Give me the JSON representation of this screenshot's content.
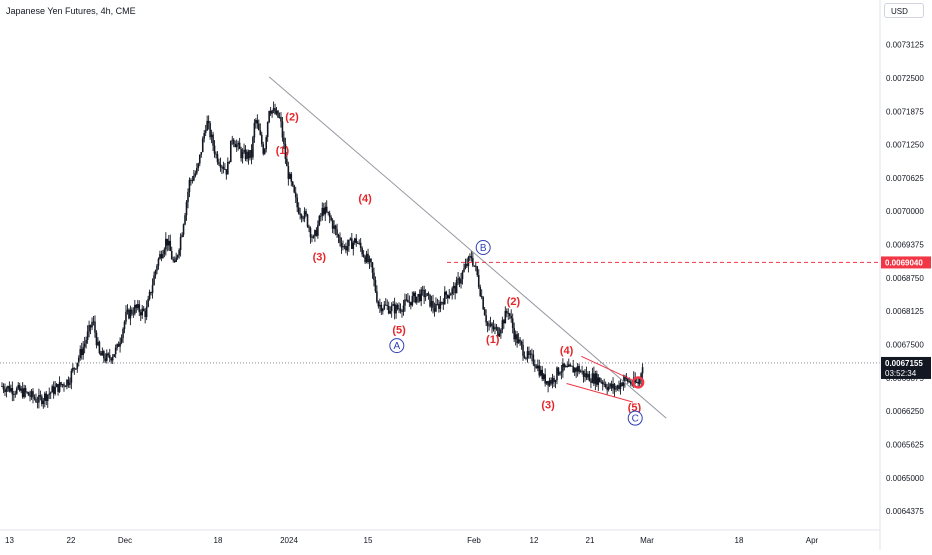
{
  "header": {
    "title": "Japanese Yen Futures, 4h, CME",
    "currency": "USD"
  },
  "colors": {
    "candle": "#131722",
    "wave_label": "#e5262a",
    "abc_label": "#2f3fb5",
    "trendline": "#9598a1",
    "resistance": "#f23645",
    "wedge": "#f23645",
    "last_price_bg": "#131722",
    "resistance_bg": "#f23645"
  },
  "chart_data": {
    "type": "candlestick",
    "y_axis": {
      "ticks": [
        "0.0073125",
        "0.0072500",
        "0.0071875",
        "0.0071250",
        "0.0070625",
        "0.0070000",
        "0.0069375",
        "0.0068750",
        "0.0068125",
        "0.0067500",
        "0.0066875",
        "0.0066250",
        "0.0065625",
        "0.0065000",
        "0.0064375"
      ],
      "range": [
        0.006415,
        0.007375
      ]
    },
    "x_axis": {
      "ticks": [
        "13",
        "22",
        "Dec",
        "18",
        "2024",
        "15",
        "Feb",
        "12",
        "21",
        "Mar",
        "18",
        "Apr"
      ]
    },
    "price_path": [
      [
        0,
        0.006672
      ],
      [
        3,
        0.00666
      ],
      [
        5,
        0.006645
      ],
      [
        7,
        0.006665
      ],
      [
        9,
        0.006683
      ],
      [
        11,
        0.006745
      ],
      [
        12.3,
        0.006795
      ],
      [
        13.2,
        0.00673
      ],
      [
        14.4,
        0.006723
      ],
      [
        15.6,
        0.006742
      ],
      [
        16.8,
        0.006803
      ],
      [
        18,
        0.006818
      ],
      [
        19.5,
        0.006809
      ],
      [
        21,
        0.006902
      ],
      [
        22.3,
        0.006948
      ],
      [
        23.4,
        0.006895
      ],
      [
        24.4,
        0.006965
      ],
      [
        25.4,
        0.007055
      ],
      [
        26.5,
        0.007077
      ],
      [
        27.7,
        0.00717
      ],
      [
        29,
        0.007105
      ],
      [
        30.5,
        0.007075
      ],
      [
        31.2,
        0.00714
      ],
      [
        32.5,
        0.007105
      ],
      [
        33.8,
        0.007105
      ],
      [
        34.3,
        0.007175
      ],
      [
        35.5,
        0.00711
      ],
      [
        36.2,
        0.007195
      ],
      [
        37.7,
        0.007172
      ],
      [
        38.6,
        0.00708
      ],
      [
        40,
        0.007008
      ],
      [
        41.2,
        0.006988
      ],
      [
        42.2,
        0.006945
      ],
      [
        43.5,
        0.007005
      ],
      [
        44.5,
        0.006985
      ],
      [
        45.5,
        0.006952
      ],
      [
        46.4,
        0.006932
      ],
      [
        48,
        0.006945
      ],
      [
        50,
        0.006895
      ],
      [
        51,
        0.006825
      ],
      [
        52.6,
        0.006818
      ],
      [
        53.5,
        0.006817
      ],
      [
        54.6,
        0.006825
      ],
      [
        55.9,
        0.006838
      ],
      [
        57.3,
        0.006845
      ],
      [
        58.7,
        0.006815
      ],
      [
        60.2,
        0.006844
      ],
      [
        61.4,
        0.006855
      ],
      [
        62.8,
        0.006895
      ],
      [
        63.6,
        0.006915
      ],
      [
        64.3,
        0.006885
      ],
      [
        65.8,
        0.006785
      ],
      [
        67.2,
        0.006775
      ],
      [
        68.6,
        0.006815
      ],
      [
        69.5,
        0.006765
      ],
      [
        71.1,
        0.006728
      ],
      [
        72.3,
        0.006717
      ],
      [
        73.4,
        0.006685
      ],
      [
        74.5,
        0.006682
      ],
      [
        75.6,
        0.006705
      ],
      [
        76.7,
        0.006702
      ],
      [
        78,
        0.006705
      ],
      [
        79,
        0.006692
      ],
      [
        80,
        0.006688
      ],
      [
        81.2,
        0.006683
      ],
      [
        82.3,
        0.00667
      ],
      [
        83.2,
        0.006668
      ],
      [
        84.3,
        0.006685
      ],
      [
        85.5,
        0.006677
      ],
      [
        86.3,
        0.006678
      ],
      [
        86.8,
        0.006716
      ]
    ],
    "last_price": 0.0067155,
    "last_price_label": "0.0067155",
    "countdown": "03:52:34",
    "resistance_level": 0.006904,
    "resistance_label": "0.0069040",
    "trendline": {
      "from": [
        36.2,
        0.007252
      ],
      "to": [
        90,
        0.006612
      ]
    },
    "wedge": {
      "upper": {
        "from": [
          78.5,
          0.006728
        ],
        "to": [
          85.5,
          0.006683
        ]
      },
      "lower": {
        "from": [
          76.5,
          0.006677
        ],
        "to": [
          85.5,
          0.006642
        ]
      }
    },
    "wave_labels": [
      {
        "text": "(2)",
        "x": 39.3,
        "y": 0.007178,
        "group": "wave"
      },
      {
        "text": "(1)",
        "x": 38.0,
        "y": 0.007115,
        "group": "wave"
      },
      {
        "text": "(3)",
        "x": 43.0,
        "y": 0.006915,
        "group": "wave"
      },
      {
        "text": "(4)",
        "x": 49.2,
        "y": 0.007025,
        "group": "wave"
      },
      {
        "text": "(5)",
        "x": 53.8,
        "y": 0.006778,
        "group": "wave"
      },
      {
        "text": "(2)",
        "x": 69.3,
        "y": 0.006832,
        "group": "wave"
      },
      {
        "text": "(1)",
        "x": 66.5,
        "y": 0.00676,
        "group": "wave"
      },
      {
        "text": "(4)",
        "x": 76.5,
        "y": 0.00674,
        "group": "wave"
      },
      {
        "text": "(3)",
        "x": 74.0,
        "y": 0.006638,
        "group": "wave"
      },
      {
        "text": "(5)",
        "x": 85.7,
        "y": 0.006633,
        "group": "wave"
      }
    ],
    "abc_labels": [
      {
        "text": "A",
        "x": 53.5,
        "y": 0.006748
      },
      {
        "text": "B",
        "x": 65.2,
        "y": 0.006932
      },
      {
        "text": "C",
        "x": 85.8,
        "y": 0.006612
      }
    ],
    "marker": {
      "x": 86.2,
      "y": 0.006679
    }
  }
}
